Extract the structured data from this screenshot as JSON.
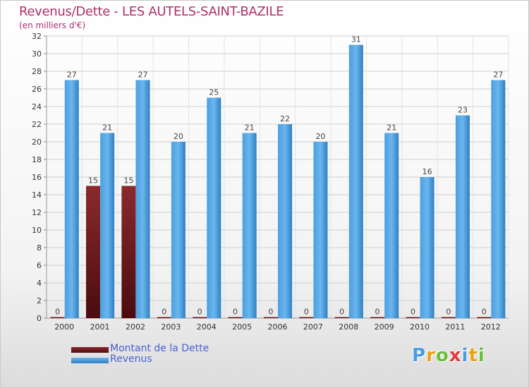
{
  "header": {
    "title": "Revenus/Dette - LES AUTELS-SAINT-BAZILE",
    "subtitle": "(en milliers d'€)"
  },
  "legend": {
    "debt_label": "Montant de la Dette",
    "revenue_label": "Revenus"
  },
  "brand": {
    "letters": [
      "P",
      "r",
      "o",
      "x",
      "i",
      "t",
      "i"
    ],
    "colors": [
      "#4a9be0",
      "#e8a317",
      "#6abf3a",
      "#e03c3c",
      "#4a9be0",
      "#e8a317",
      "#6abf3a"
    ]
  },
  "colors": {
    "debt": "#7a1f22",
    "revenue": "#4a9fe0",
    "axis_text": "#333333",
    "grid": "#cfcfcf"
  },
  "chart_data": {
    "type": "bar",
    "title": "Revenus/Dette - LES AUTELS-SAINT-BAZILE",
    "subtitle": "(en milliers d'€)",
    "categories": [
      "2000",
      "2001",
      "2002",
      "2003",
      "2004",
      "2005",
      "2006",
      "2007",
      "2008",
      "2009",
      "2010",
      "2011",
      "2012"
    ],
    "series": [
      {
        "name": "Montant de la Dette",
        "values": [
          0,
          15,
          15,
          0,
          0,
          0,
          0,
          0,
          0,
          0,
          0,
          0,
          0
        ]
      },
      {
        "name": "Revenus",
        "values": [
          27,
          21,
          27,
          20,
          25,
          21,
          22,
          20,
          31,
          21,
          16,
          23,
          27
        ]
      }
    ],
    "ylim": [
      0,
      32
    ],
    "yticks": [
      0,
      2,
      4,
      6,
      8,
      10,
      12,
      14,
      16,
      18,
      20,
      22,
      24,
      26,
      28,
      30,
      32
    ],
    "grid": "horizontal",
    "legend_position": "bottom-left"
  }
}
